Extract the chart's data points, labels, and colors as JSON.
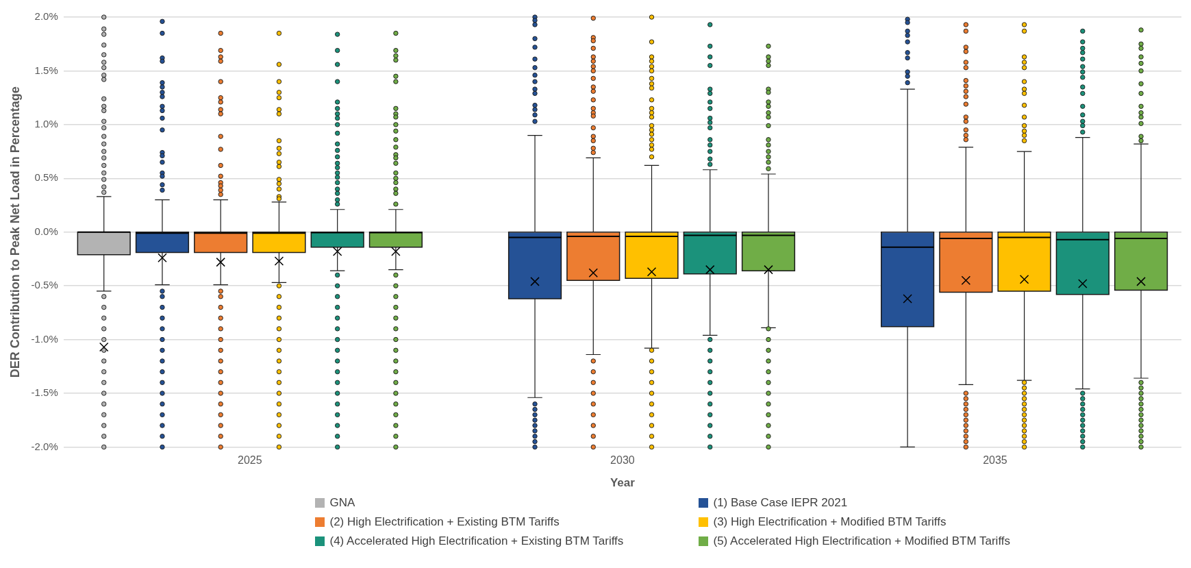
{
  "chart_data": {
    "type": "box",
    "xlabel": "Year",
    "ylabel": "DER Contribution to Peak Net Load in Percentage",
    "categories": [
      "2025",
      "2030",
      "2035"
    ],
    "ylim": [
      -2,
      2
    ],
    "yticks": [
      {
        "value": -2,
        "label": "-2.0%"
      },
      {
        "value": -1.5,
        "label": "-1.5%"
      },
      {
        "value": -1,
        "label": "-1.0%"
      },
      {
        "value": -0.5,
        "label": "-0.5%"
      },
      {
        "value": 0,
        "label": "0.0%"
      },
      {
        "value": 0.5,
        "label": "0.5%"
      },
      {
        "value": 1,
        "label": "1.0%"
      },
      {
        "value": 1.5,
        "label": "1.5%"
      },
      {
        "value": 2,
        "label": "2.0%"
      }
    ],
    "grid": "y",
    "legend": "bottom",
    "marker": "circle",
    "series": [
      {
        "name": "GNA",
        "color": "#b3b3b3",
        "boxes": [
          {
            "low": -0.55,
            "q1": -0.21,
            "median": 0,
            "q3": 0,
            "high": 0.33,
            "mean": -1.07,
            "outliers": [
              2.0,
              1.89,
              1.84,
              1.74,
              1.65,
              1.58,
              1.53,
              1.46,
              1.42,
              1.24,
              1.17,
              1.13,
              1.03,
              0.97,
              0.89,
              0.82,
              0.75,
              0.69,
              0.62,
              0.55,
              0.49,
              0.42,
              0.37,
              -0.6,
              -0.7,
              -0.8,
              -0.9,
              -1.0,
              -1.1,
              -1.2,
              -1.3,
              -1.4,
              -1.5,
              -1.6,
              -1.7,
              -1.8,
              -1.9,
              -2.0
            ]
          },
          null,
          null
        ]
      },
      {
        "name": "(1) Base Case IEPR 2021",
        "color": "#255296",
        "boxes": [
          {
            "low": -0.49,
            "q1": -0.19,
            "median": -0.01,
            "q3": 0,
            "high": 0.3,
            "mean": -0.24,
            "outliers": [
              1.96,
              1.85,
              1.62,
              1.59,
              1.39,
              1.35,
              1.3,
              1.26,
              1.17,
              1.13,
              1.06,
              0.95,
              0.74,
              0.71,
              0.65,
              0.55,
              0.52,
              0.44,
              0.39,
              -0.55,
              -0.6,
              -0.7,
              -0.8,
              -0.9,
              -1.0,
              -1.1,
              -1.2,
              -1.3,
              -1.4,
              -1.5,
              -1.6,
              -1.7,
              -1.8,
              -1.9,
              -2.0
            ]
          },
          {
            "low": -1.54,
            "q1": -0.62,
            "median": -0.05,
            "q3": 0,
            "high": 0.9,
            "mean": -0.46,
            "outliers": [
              2.0,
              1.97,
              1.93,
              1.8,
              1.72,
              1.61,
              1.53,
              1.46,
              1.4,
              1.33,
              1.29,
              1.18,
              1.14,
              1.09,
              1.03,
              -1.6,
              -1.65,
              -1.7,
              -1.75,
              -1.8,
              -1.85,
              -1.9,
              -1.95,
              -2.0
            ]
          },
          {
            "low": -2.0,
            "q1": -0.88,
            "median": -0.14,
            "q3": 0,
            "high": 1.33,
            "mean": -0.62,
            "outliers": [
              1.98,
              1.95,
              1.87,
              1.83,
              1.77,
              1.67,
              1.62,
              1.49,
              1.45,
              1.39
            ]
          }
        ]
      },
      {
        "name": "(2) High Electrification + Existing BTM Tariffs",
        "color": "#ed7d31",
        "boxes": [
          {
            "low": -0.49,
            "q1": -0.19,
            "median": -0.01,
            "q3": 0,
            "high": 0.3,
            "mean": -0.28,
            "outliers": [
              1.85,
              1.69,
              1.63,
              1.59,
              1.4,
              1.25,
              1.21,
              1.14,
              1.1,
              0.89,
              0.77,
              0.62,
              0.52,
              0.46,
              0.43,
              0.39,
              0.35,
              -0.55,
              -0.6,
              -0.7,
              -0.8,
              -0.9,
              -1.0,
              -1.1,
              -1.2,
              -1.3,
              -1.4,
              -1.5,
              -1.6,
              -1.7,
              -1.8,
              -1.9,
              -2.0
            ]
          },
          {
            "low": -1.14,
            "q1": -0.45,
            "median": -0.04,
            "q3": 0,
            "high": 0.69,
            "mean": -0.38,
            "outliers": [
              1.99,
              1.81,
              1.78,
              1.71,
              1.63,
              1.59,
              1.54,
              1.5,
              1.43,
              1.35,
              1.31,
              1.23,
              1.15,
              1.11,
              1.08,
              0.97,
              0.89,
              0.85,
              0.78,
              0.74,
              -1.2,
              -1.3,
              -1.4,
              -1.5,
              -1.6,
              -1.7,
              -1.8,
              -1.9,
              -2.0
            ]
          },
          {
            "low": -1.42,
            "q1": -0.56,
            "median": -0.06,
            "q3": 0,
            "high": 0.79,
            "mean": -0.45,
            "outliers": [
              1.93,
              1.87,
              1.72,
              1.68,
              1.58,
              1.53,
              1.41,
              1.36,
              1.31,
              1.26,
              1.19,
              1.07,
              1.03,
              0.95,
              0.9,
              0.86,
              -1.5,
              -1.55,
              -1.6,
              -1.65,
              -1.7,
              -1.75,
              -1.8,
              -1.85,
              -1.9,
              -1.95,
              -2.0
            ]
          }
        ]
      },
      {
        "name": "(3) High Electrification + Modified BTM Tariffs",
        "color": "#ffc000",
        "boxes": [
          {
            "low": -0.47,
            "q1": -0.19,
            "median": -0.01,
            "q3": 0,
            "high": 0.28,
            "mean": -0.27,
            "outliers": [
              1.85,
              1.56,
              1.4,
              1.3,
              1.25,
              1.14,
              1.1,
              0.85,
              0.78,
              0.73,
              0.65,
              0.61,
              0.49,
              0.45,
              0.4,
              0.33,
              0.31,
              -0.5,
              -0.6,
              -0.7,
              -0.8,
              -0.9,
              -1.0,
              -1.1,
              -1.2,
              -1.3,
              -1.4,
              -1.5,
              -1.6,
              -1.7,
              -1.8,
              -1.9,
              -2.0
            ]
          },
          {
            "low": -1.08,
            "q1": -0.43,
            "median": -0.04,
            "q3": 0,
            "high": 0.62,
            "mean": -0.37,
            "outliers": [
              2.0,
              1.77,
              1.63,
              1.59,
              1.54,
              1.5,
              1.43,
              1.38,
              1.34,
              1.23,
              1.15,
              1.11,
              1.07,
              0.99,
              0.95,
              0.91,
              0.86,
              0.81,
              0.77,
              0.7,
              -1.1,
              -1.2,
              -1.3,
              -1.4,
              -1.5,
              -1.6,
              -1.7,
              -1.8,
              -1.9,
              -2.0
            ]
          },
          {
            "low": -1.38,
            "q1": -0.55,
            "median": -0.05,
            "q3": 0,
            "high": 0.75,
            "mean": -0.44,
            "outliers": [
              1.93,
              1.87,
              1.63,
              1.58,
              1.53,
              1.4,
              1.33,
              1.29,
              1.18,
              1.07,
              0.99,
              0.94,
              0.9,
              0.85,
              -1.4,
              -1.45,
              -1.5,
              -1.55,
              -1.6,
              -1.65,
              -1.7,
              -1.75,
              -1.8,
              -1.85,
              -1.9,
              -1.95,
              -2.0
            ]
          }
        ]
      },
      {
        "name": "(4) Accelerated High Electrification + Existing BTM Tariffs",
        "color": "#1b927b",
        "boxes": [
          {
            "low": -0.36,
            "q1": -0.14,
            "median": -0.005,
            "q3": 0,
            "high": 0.21,
            "mean": -0.18,
            "outliers": [
              1.84,
              1.69,
              1.56,
              1.4,
              1.21,
              1.15,
              1.1,
              1.06,
              1.0,
              0.92,
              0.82,
              0.76,
              0.7,
              0.64,
              0.6,
              0.55,
              0.51,
              0.46,
              0.4,
              0.36,
              0.3,
              0.26,
              -0.4,
              -0.5,
              -0.6,
              -0.7,
              -0.8,
              -0.9,
              -1.0,
              -1.1,
              -1.2,
              -1.3,
              -1.4,
              -1.5,
              -1.6,
              -1.7,
              -1.8,
              -1.9,
              -2.0
            ]
          },
          {
            "low": -0.96,
            "q1": -0.39,
            "median": -0.03,
            "q3": 0,
            "high": 0.58,
            "mean": -0.35,
            "outliers": [
              1.93,
              1.73,
              1.63,
              1.55,
              1.33,
              1.29,
              1.21,
              1.15,
              1.06,
              1.02,
              0.97,
              0.86,
              0.81,
              0.75,
              0.68,
              0.63,
              -1.0,
              -1.1,
              -1.2,
              -1.3,
              -1.4,
              -1.5,
              -1.6,
              -1.7,
              -1.8,
              -1.9,
              -2.0
            ]
          },
          {
            "low": -1.46,
            "q1": -0.58,
            "median": -0.07,
            "q3": 0,
            "high": 0.88,
            "mean": -0.48,
            "outliers": [
              1.87,
              1.77,
              1.71,
              1.67,
              1.61,
              1.54,
              1.49,
              1.44,
              1.35,
              1.29,
              1.17,
              1.09,
              1.03,
              0.99,
              0.93,
              -1.5,
              -1.55,
              -1.6,
              -1.65,
              -1.7,
              -1.75,
              -1.8,
              -1.85,
              -1.9,
              -1.95,
              -2.0
            ]
          }
        ]
      },
      {
        "name": "(5) Accelerated High Electrification + Modified BTM Tariffs",
        "color": "#70ad47",
        "boxes": [
          {
            "low": -0.35,
            "q1": -0.14,
            "median": -0.005,
            "q3": 0,
            "high": 0.21,
            "mean": -0.18,
            "outliers": [
              1.85,
              1.69,
              1.64,
              1.6,
              1.45,
              1.4,
              1.15,
              1.1,
              1.07,
              1.0,
              0.94,
              0.86,
              0.79,
              0.72,
              0.69,
              0.64,
              0.55,
              0.5,
              0.46,
              0.4,
              0.36,
              0.26,
              -0.4,
              -0.5,
              -0.6,
              -0.7,
              -0.8,
              -0.9,
              -1.0,
              -1.1,
              -1.2,
              -1.3,
              -1.4,
              -1.5,
              -1.6,
              -1.7,
              -1.8,
              -1.9,
              -2.0
            ]
          },
          {
            "low": -0.89,
            "q1": -0.36,
            "median": -0.03,
            "q3": 0,
            "high": 0.54,
            "mean": -0.35,
            "outliers": [
              1.73,
              1.63,
              1.59,
              1.55,
              1.33,
              1.3,
              1.21,
              1.17,
              1.11,
              1.07,
              0.99,
              0.86,
              0.81,
              0.75,
              0.7,
              0.65,
              0.59,
              -0.9,
              -1.0,
              -1.1,
              -1.2,
              -1.3,
              -1.4,
              -1.5,
              -1.6,
              -1.7,
              -1.8,
              -1.9,
              -2.0
            ]
          },
          {
            "low": -1.36,
            "q1": -0.54,
            "median": -0.06,
            "q3": 0,
            "high": 0.82,
            "mean": -0.46,
            "outliers": [
              1.88,
              1.75,
              1.71,
              1.63,
              1.57,
              1.5,
              1.38,
              1.29,
              1.17,
              1.11,
              1.07,
              1.01,
              0.89,
              0.85,
              -1.4,
              -1.45,
              -1.5,
              -1.55,
              -1.6,
              -1.65,
              -1.7,
              -1.75,
              -1.8,
              -1.85,
              -1.9,
              -1.95,
              -2.0
            ]
          }
        ]
      }
    ]
  }
}
